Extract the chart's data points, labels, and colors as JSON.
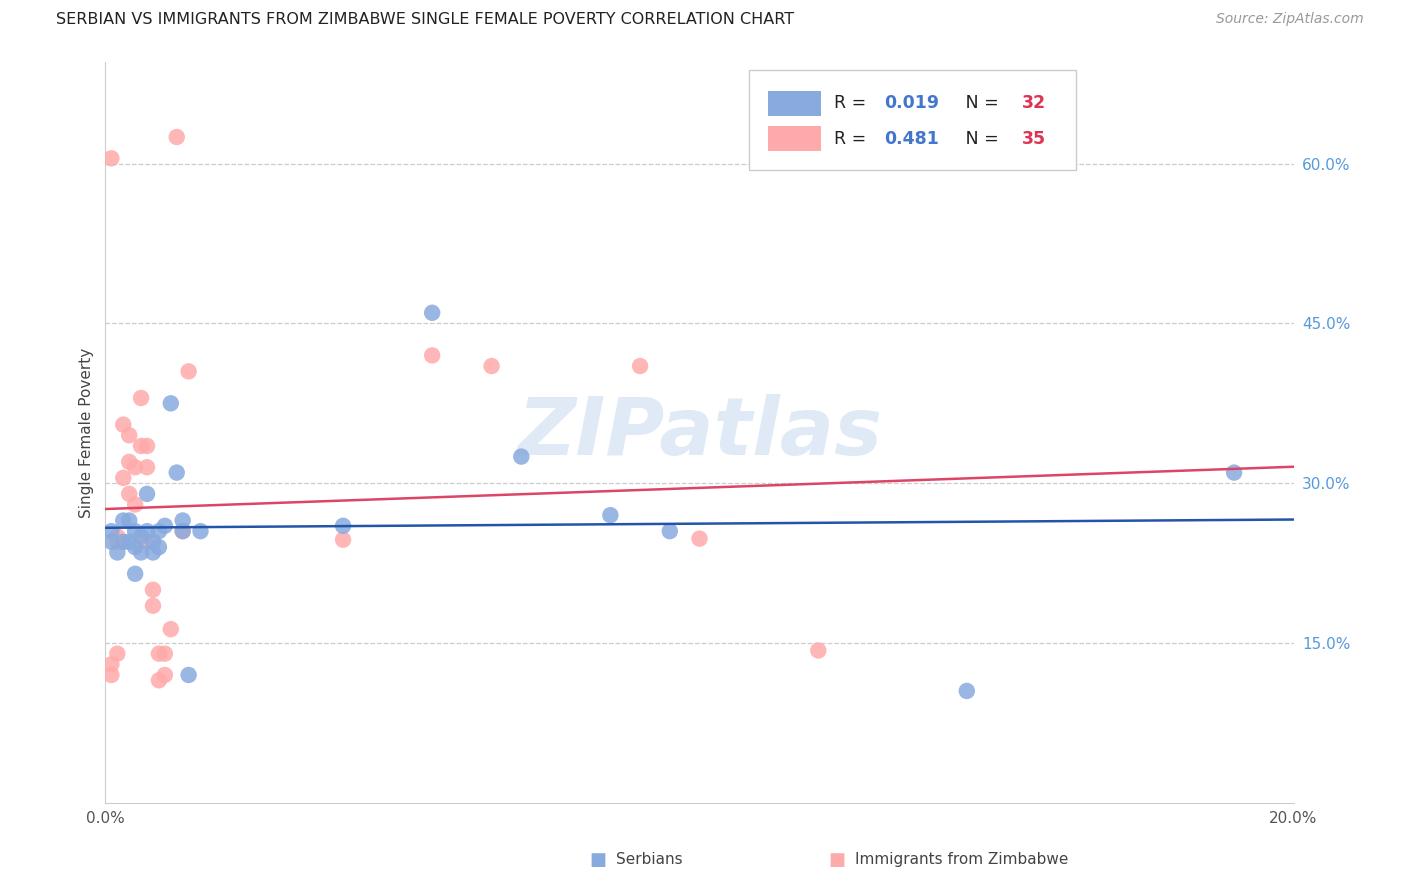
{
  "title": "SERBIAN VS IMMIGRANTS FROM ZIMBABWE SINGLE FEMALE POVERTY CORRELATION CHART",
  "source": "Source: ZipAtlas.com",
  "ylabel": "Single Female Poverty",
  "xlim": [
    0.0,
    0.2
  ],
  "ylim": [
    0.0,
    0.695
  ],
  "serbian_color": "#88AADD",
  "zimbabwe_color": "#FFAAAA",
  "serbian_line_color": "#2255aa",
  "zimbabwe_line_color": "#dd4466",
  "watermark": "ZIPatlas",
  "serbians_label": "Serbians",
  "zimbabwe_label": "Immigrants from Zimbabwe",
  "R_serbian": "0.019",
  "N_serbian": "32",
  "R_zimbabwe": "0.481",
  "N_zimbabwe": "35",
  "r_color": "#4477cc",
  "n_color": "#dd3355",
  "serbian_x": [
    0.001,
    0.001,
    0.002,
    0.003,
    0.003,
    0.004,
    0.004,
    0.005,
    0.005,
    0.005,
    0.006,
    0.006,
    0.007,
    0.007,
    0.008,
    0.008,
    0.009,
    0.009,
    0.01,
    0.011,
    0.012,
    0.013,
    0.013,
    0.014,
    0.016,
    0.04,
    0.055,
    0.07,
    0.085,
    0.095,
    0.145,
    0.19
  ],
  "serbian_y": [
    0.255,
    0.245,
    0.235,
    0.265,
    0.245,
    0.265,
    0.245,
    0.255,
    0.24,
    0.215,
    0.25,
    0.235,
    0.29,
    0.255,
    0.245,
    0.235,
    0.255,
    0.24,
    0.26,
    0.375,
    0.31,
    0.265,
    0.255,
    0.12,
    0.255,
    0.26,
    0.46,
    0.325,
    0.27,
    0.255,
    0.105,
    0.31
  ],
  "zimbabwe_x": [
    0.001,
    0.001,
    0.001,
    0.002,
    0.002,
    0.002,
    0.003,
    0.003,
    0.003,
    0.004,
    0.004,
    0.004,
    0.005,
    0.005,
    0.006,
    0.006,
    0.007,
    0.007,
    0.007,
    0.008,
    0.008,
    0.009,
    0.009,
    0.01,
    0.01,
    0.011,
    0.012,
    0.013,
    0.014,
    0.04,
    0.055,
    0.065,
    0.09,
    0.1,
    0.12
  ],
  "zimbabwe_y": [
    0.605,
    0.13,
    0.12,
    0.14,
    0.25,
    0.245,
    0.355,
    0.305,
    0.245,
    0.345,
    0.32,
    0.29,
    0.315,
    0.28,
    0.38,
    0.335,
    0.335,
    0.315,
    0.245,
    0.2,
    0.185,
    0.14,
    0.115,
    0.14,
    0.12,
    0.163,
    0.625,
    0.255,
    0.405,
    0.247,
    0.42,
    0.41,
    0.41,
    0.248,
    0.143
  ]
}
